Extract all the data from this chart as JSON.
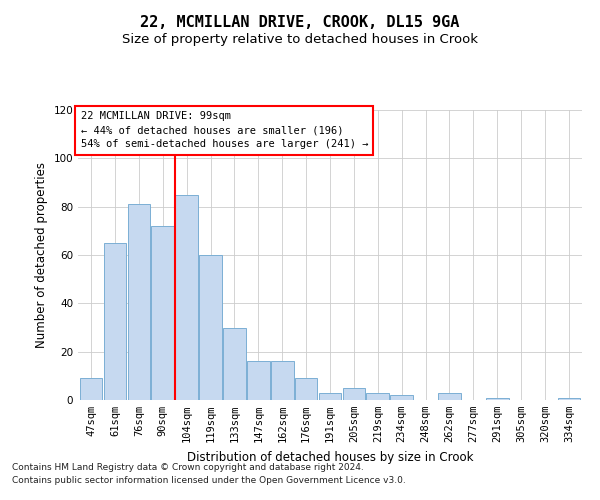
{
  "title": "22, MCMILLAN DRIVE, CROOK, DL15 9GA",
  "subtitle": "Size of property relative to detached houses in Crook",
  "xlabel": "Distribution of detached houses by size in Crook",
  "ylabel": "Number of detached properties",
  "footnote1": "Contains HM Land Registry data © Crown copyright and database right 2024.",
  "footnote2": "Contains public sector information licensed under the Open Government Licence v3.0.",
  "bar_labels": [
    "47sqm",
    "61sqm",
    "76sqm",
    "90sqm",
    "104sqm",
    "119sqm",
    "133sqm",
    "147sqm",
    "162sqm",
    "176sqm",
    "191sqm",
    "205sqm",
    "219sqm",
    "234sqm",
    "248sqm",
    "262sqm",
    "277sqm",
    "291sqm",
    "305sqm",
    "320sqm",
    "334sqm"
  ],
  "bar_values": [
    9,
    65,
    81,
    72,
    85,
    60,
    30,
    16,
    16,
    9,
    3,
    5,
    3,
    2,
    0,
    3,
    0,
    1,
    0,
    0,
    1
  ],
  "bar_color": "#c6d9f0",
  "bar_edge_color": "#7bafd4",
  "red_line_index": 4,
  "annotation_text": "22 MCMILLAN DRIVE: 99sqm\n← 44% of detached houses are smaller (196)\n54% of semi-detached houses are larger (241) →",
  "annotation_box_color": "white",
  "annotation_box_edge_color": "red",
  "ylim": [
    0,
    120
  ],
  "yticks": [
    0,
    20,
    40,
    60,
    80,
    100,
    120
  ],
  "grid_color": "#cccccc",
  "bg_color": "white",
  "title_fontsize": 11,
  "subtitle_fontsize": 9.5,
  "ylabel_fontsize": 8.5,
  "xlabel_fontsize": 8.5,
  "tick_fontsize": 7.5,
  "annotation_fontsize": 7.5,
  "footnote_fontsize": 6.5
}
